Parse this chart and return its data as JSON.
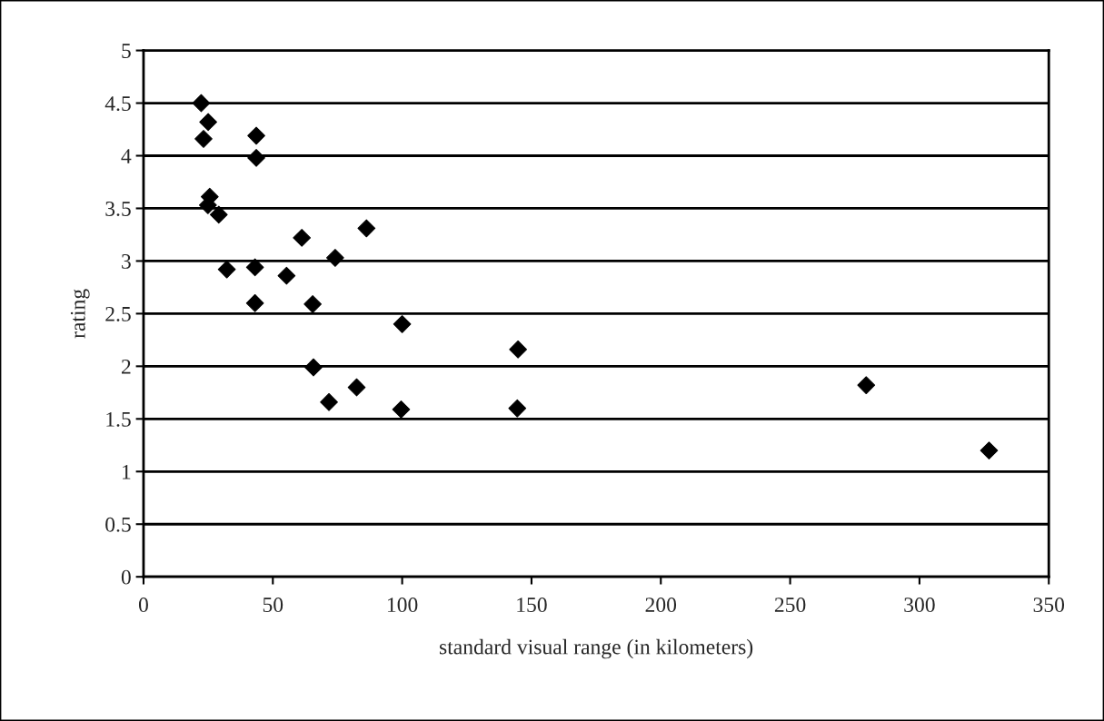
{
  "chart_data": {
    "type": "scatter",
    "xlabel": "standard visual range (in kilometers)",
    "ylabel": "rating",
    "x": [
      22.3,
      25.0,
      23.2,
      43.6,
      43.6,
      25.6,
      24.9,
      29.1,
      61.2,
      86.2,
      74.1,
      32.2,
      43.1,
      55.3,
      43.1,
      65.4,
      100,
      144.8,
      65.7,
      82.4,
      71.7,
      99.6,
      144.5,
      279.4,
      326.9
    ],
    "values": [
      4.5,
      4.32,
      4.16,
      4.19,
      3.98,
      3.61,
      3.53,
      3.44,
      3.22,
      3.31,
      3.03,
      2.92,
      2.94,
      2.86,
      2.6,
      2.59,
      2.4,
      2.16,
      1.99,
      1.8,
      1.66,
      1.59,
      1.6,
      1.82,
      1.2
    ],
    "color": "#000000",
    "marker": "diamond",
    "xlim": [
      0,
      350
    ],
    "xticks": [
      0,
      50,
      100,
      150,
      200,
      250,
      300,
      350
    ],
    "ylim": [
      0,
      5
    ],
    "yticks": [
      0,
      0.5,
      1,
      1.5,
      2,
      2.5,
      3,
      3.5,
      4,
      4.5,
      5
    ],
    "grid": "y"
  }
}
